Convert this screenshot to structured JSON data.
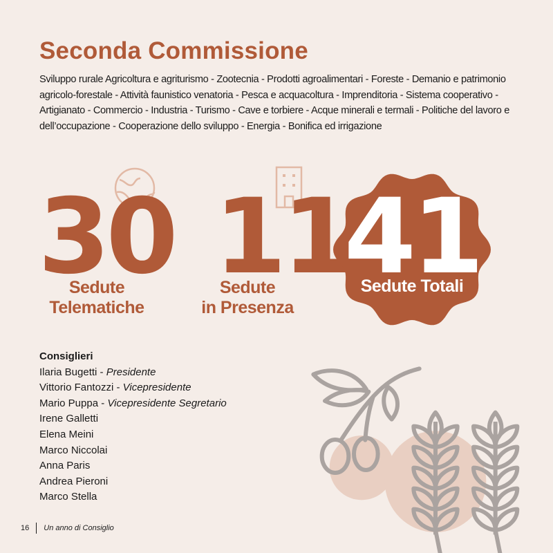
{
  "title": "Seconda Commissione",
  "description": "Sviluppo rurale Agricoltura e agriturismo - Zootecnia - Prodotti agroalimentari - Foreste - Demanio e patrimonio agricolo-forestale - Attività faunistico venatoria - Pesca e acquacoltura - Imprenditoria - Sistema cooperativo - Artigianato - Commercio - Industria - Turismo - Cave e torbiere - Acque minerali e termali - Politiche del lavoro e dell’occupazione - Cooperazione dello sviluppo - Energia - Bonifica ed irrigazione",
  "stats": [
    {
      "value": "30",
      "label_1": "Sedute",
      "label_2": "Telematiche",
      "icon": "globe-icon"
    },
    {
      "value": "11",
      "label_1": "Sedute",
      "label_2": "in Presenza",
      "icon": "building-icon"
    },
    {
      "value": "41",
      "label_1": "Sedute Totali"
    }
  ],
  "colors": {
    "accent": "#b05a38",
    "background": "#f5ede8",
    "illustration": "#aaa3a0",
    "illustration_fill": "#e9cfc2"
  },
  "councillors": {
    "heading": "Consiglieri",
    "members": [
      {
        "name": "Ilaria Bugetti",
        "role": "Presidente"
      },
      {
        "name": "Vittorio Fantozzi",
        "role": "Vicepresidente"
      },
      {
        "name": "Mario Puppa",
        "role": "Vicepresidente Segretario"
      },
      {
        "name": "Irene Galletti"
      },
      {
        "name": "Elena Meini"
      },
      {
        "name": "Marco Niccolai"
      },
      {
        "name": "Anna Paris"
      },
      {
        "name": "Andrea Pieroni"
      },
      {
        "name": "Marco Stella"
      }
    ]
  },
  "footer": {
    "page": "16",
    "publication": "Un anno di Consiglio"
  }
}
